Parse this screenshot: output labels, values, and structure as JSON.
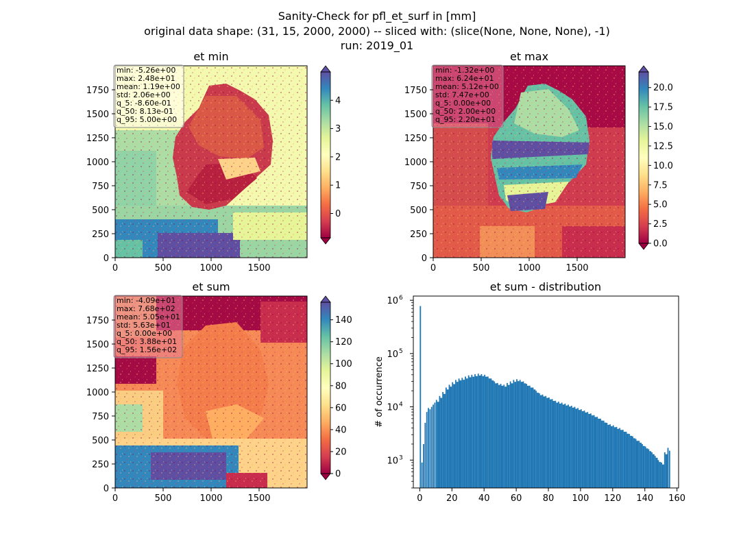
{
  "figure": {
    "title_lines": [
      "Sanity-Check for pfl_et_surf in [mm]",
      "original data shape: (31, 15, 2000, 2000) -- sliced with: (slice(None, None, None), -1)",
      "run: 2019_01"
    ]
  },
  "panels": [
    {
      "title": "et min",
      "x_ticks": [
        "0",
        "500",
        "1000",
        "1500"
      ],
      "y_ticks": [
        "0",
        "250",
        "500",
        "750",
        "1000",
        "1250",
        "1500",
        "1750"
      ],
      "stats": [
        "min: -5.26e+00",
        "max: 2.48e+01",
        "mean: 1.19e+00",
        "std: 2.06e+00",
        "q_5: -8.60e-01",
        "q_50: 8.13e-01",
        "q_95: 5.00e+00"
      ],
      "stats_box_color": "#fffff0",
      "colorbar": {
        "cmap": "Spectral",
        "range": [
          -0.86,
          5.0
        ],
        "ticks": [
          0,
          1,
          2,
          3,
          4
        ],
        "tick_labels": [
          "0",
          "1",
          "2",
          "3",
          "4"
        ]
      }
    },
    {
      "title": "et max",
      "x_ticks": [
        "0",
        "500",
        "1000",
        "1500"
      ],
      "y_ticks": [
        "0",
        "250",
        "500",
        "750",
        "1000",
        "1250",
        "1500",
        "1750"
      ],
      "stats": [
        "min: -1.32e+00",
        "max: 6.24e+01",
        "mean: 5.12e+00",
        "std: 7.47e+00",
        "q_5: 0.00e+00",
        "q_50: 2.00e+00",
        "q_95: 2.20e+01"
      ],
      "stats_box_color": "#e87a95",
      "colorbar": {
        "cmap": "Spectral",
        "range": [
          0,
          22
        ],
        "ticks": [
          0,
          2.5,
          5,
          7.5,
          10,
          12.5,
          15,
          17.5,
          20
        ],
        "tick_labels": [
          "0.0",
          "2.5",
          "5.0",
          "7.5",
          "10.0",
          "12.5",
          "15.0",
          "17.5",
          "20.0"
        ]
      }
    },
    {
      "title": "et sum",
      "x_ticks": [
        "0",
        "500",
        "1000",
        "1500"
      ],
      "y_ticks": [
        "0",
        "250",
        "500",
        "750",
        "1000",
        "1250",
        "1500",
        "1750"
      ],
      "stats": [
        "min: -4.09e+01",
        "max: 7.68e+02",
        "mean: 5.05e+01",
        "std: 5.63e+01",
        "q_5: 0.00e+00",
        "q_50: 3.88e+01",
        "q_95: 1.56e+02"
      ],
      "stats_box_color": "#e87a95",
      "colorbar": {
        "cmap": "Spectral",
        "range": [
          0,
          156
        ],
        "ticks": [
          0,
          20,
          40,
          60,
          80,
          100,
          120,
          140
        ],
        "tick_labels": [
          "0",
          "20",
          "40",
          "60",
          "80",
          "100",
          "120",
          "140"
        ]
      }
    }
  ],
  "colors": {
    "spectral": [
      "#9e0142",
      "#d53e4f",
      "#f46d43",
      "#fdae61",
      "#fee08b",
      "#ffffbf",
      "#e6f598",
      "#abdda4",
      "#66c2a5",
      "#3288bd",
      "#5e4fa2"
    ],
    "hist_bar": "#1f77b4"
  },
  "chart_data": {
    "type": "bar",
    "title": "et sum - distribution",
    "xlabel": "",
    "ylabel": "# of occurrence",
    "y_scale": "log",
    "xlim": [
      -4,
      161
    ],
    "ylim": [
      300,
      1200000
    ],
    "x_tick_labels": [
      "0",
      "20",
      "40",
      "60",
      "80",
      "100",
      "120",
      "140",
      "160"
    ],
    "y_tick_labels": [
      {
        "base": "10",
        "exp": "3",
        "value": 1000
      },
      {
        "base": "10",
        "exp": "4",
        "value": 10000
      },
      {
        "base": "10",
        "exp": "5",
        "value": 100000
      },
      {
        "base": "10",
        "exp": "6",
        "value": 1000000
      }
    ],
    "bin_width": 0.78,
    "bins": [
      [
        0.0,
        780000
      ],
      [
        1.0,
        900
      ],
      [
        2.0,
        2000
      ],
      [
        3.0,
        5000
      ],
      [
        4.0,
        8000
      ],
      [
        5.0,
        9500
      ],
      [
        6.0,
        9000
      ],
      [
        7.0,
        10000
      ],
      [
        8.0,
        11000
      ],
      [
        9.0,
        12000
      ],
      [
        10.0,
        13500
      ],
      [
        12.0,
        16000
      ],
      [
        14.0,
        19000
      ],
      [
        16.0,
        23000
      ],
      [
        18.0,
        26000
      ],
      [
        20.0,
        29000
      ],
      [
        22.0,
        32000
      ],
      [
        24.0,
        34000
      ],
      [
        26.0,
        35000
      ],
      [
        28.0,
        37000
      ],
      [
        30.0,
        39000
      ],
      [
        32.0,
        40000
      ],
      [
        34.0,
        41000
      ],
      [
        36.0,
        42000
      ],
      [
        38.0,
        41000
      ],
      [
        40.0,
        40000
      ],
      [
        42.0,
        37000
      ],
      [
        44.0,
        34000
      ],
      [
        46.0,
        30000
      ],
      [
        48.0,
        28000
      ],
      [
        50.0,
        27000
      ],
      [
        52.0,
        26000
      ],
      [
        54.0,
        28000
      ],
      [
        56.0,
        30000
      ],
      [
        58.0,
        32000
      ],
      [
        60.0,
        33000
      ],
      [
        62.0,
        32000
      ],
      [
        64.0,
        30000
      ],
      [
        66.0,
        27000
      ],
      [
        68.0,
        25000
      ],
      [
        70.0,
        23000
      ],
      [
        72.0,
        20000
      ],
      [
        74.0,
        18000
      ],
      [
        76.0,
        17000
      ],
      [
        78.0,
        16000
      ],
      [
        80.0,
        15000
      ],
      [
        82.0,
        14000
      ],
      [
        84.0,
        13000
      ],
      [
        86.0,
        12500
      ],
      [
        88.0,
        12000
      ],
      [
        90.0,
        11500
      ],
      [
        92.0,
        11000
      ],
      [
        94.0,
        10500
      ],
      [
        96.0,
        10000
      ],
      [
        98.0,
        9500
      ],
      [
        100.0,
        9000
      ],
      [
        102.0,
        8500
      ],
      [
        104.0,
        8000
      ],
      [
        106.0,
        7500
      ],
      [
        108.0,
        7000
      ],
      [
        110.0,
        6500
      ],
      [
        112.0,
        6000
      ],
      [
        114.0,
        5500
      ],
      [
        116.0,
        5000
      ],
      [
        118.0,
        4700
      ],
      [
        120.0,
        4500
      ],
      [
        122.0,
        4200
      ],
      [
        124.0,
        4000
      ],
      [
        126.0,
        3700
      ],
      [
        128.0,
        3400
      ],
      [
        130.0,
        3100
      ],
      [
        132.0,
        2800
      ],
      [
        134.0,
        2500
      ],
      [
        136.0,
        2300
      ],
      [
        138.0,
        2000
      ],
      [
        140.0,
        1800
      ],
      [
        142.0,
        1600
      ],
      [
        144.0,
        1400
      ],
      [
        146.0,
        1200
      ],
      [
        148.0,
        1000
      ],
      [
        150.0,
        900
      ],
      [
        152.0,
        1400
      ],
      [
        154.0,
        1700
      ],
      [
        155.0,
        1500
      ]
    ]
  }
}
